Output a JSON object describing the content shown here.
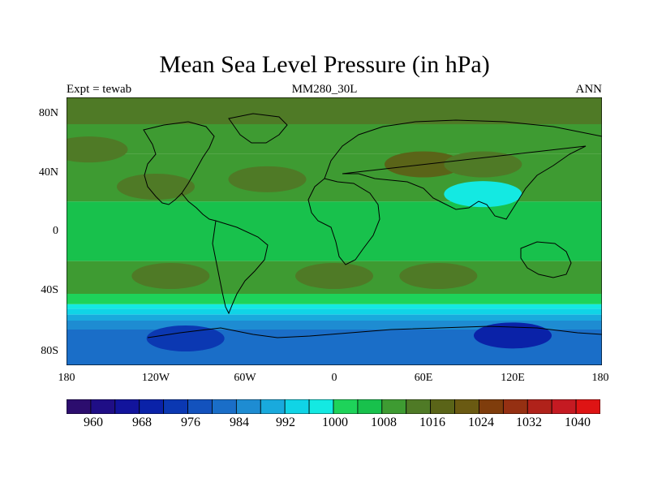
{
  "title": "Mean Sea Level Pressure (in hPa)",
  "left_label": "Expt = tewab",
  "center_label": "MM280_30L",
  "right_label": "ANN",
  "map": {
    "projection": "cylindrical-equidistant",
    "lon_range": [
      -180,
      180
    ],
    "lat_range": [
      -90,
      90
    ],
    "y_ticks": [
      "80N",
      "40N",
      "0",
      "40S",
      "80S"
    ],
    "x_ticks": [
      "180",
      "120W",
      "60W",
      "0",
      "60E",
      "120E",
      "180"
    ],
    "coastlines": true
  },
  "colorbar": {
    "levels": [
      960,
      964,
      968,
      972,
      976,
      980,
      984,
      988,
      992,
      996,
      1000,
      1004,
      1008,
      1012,
      1016,
      1020,
      1024,
      1028,
      1032,
      1036,
      1040
    ],
    "labels": [
      "960",
      "968",
      "976",
      "984",
      "992",
      "1000",
      "1008",
      "1016",
      "1024",
      "1032",
      "1040"
    ],
    "colors": [
      "#2c0d6e",
      "#1f0e86",
      "#12149c",
      "#0a22a8",
      "#0b38b2",
      "#1352bd",
      "#1a6ec8",
      "#1e8cd2",
      "#19aadd",
      "#10d4e6",
      "#14e9e2",
      "#1ed35a",
      "#18c14c",
      "#3e9b32",
      "#4f7a26",
      "#5a6418",
      "#6a5a12",
      "#7f3d0c",
      "#953012",
      "#b0221a",
      "#c51a22",
      "#de1414"
    ]
  },
  "bands": [
    {
      "lat_top": 90,
      "lat_bottom": 72,
      "level_index": 14
    },
    {
      "lat_top": 72,
      "lat_bottom": 52,
      "level_index": 13
    },
    {
      "lat_top": 52,
      "lat_bottom": 20,
      "level_index": 13
    },
    {
      "lat_top": 20,
      "lat_bottom": -20,
      "level_index": 12
    },
    {
      "lat_top": -20,
      "lat_bottom": -42,
      "level_index": 13
    },
    {
      "lat_top": -42,
      "lat_bottom": -49,
      "level_index": 11
    },
    {
      "lat_top": -49,
      "lat_bottom": -52,
      "level_index": 10
    },
    {
      "lat_top": -52,
      "lat_bottom": -56,
      "level_index": 9
    },
    {
      "lat_top": -56,
      "lat_bottom": -60,
      "level_index": 8
    },
    {
      "lat_top": -60,
      "lat_bottom": -66,
      "level_index": 7
    },
    {
      "lat_top": -66,
      "lat_bottom": -90,
      "level_index": 6
    }
  ],
  "cells": [
    {
      "lon": -165,
      "lat": 55,
      "level_index": 14
    },
    {
      "lon": -45,
      "lat": 35,
      "level_index": 14
    },
    {
      "lon": 60,
      "lat": 45,
      "level_index": 15
    },
    {
      "lon": 100,
      "lat": 45,
      "level_index": 14
    },
    {
      "lon": -120,
      "lat": 30,
      "level_index": 14
    },
    {
      "lon": 100,
      "lat": 25,
      "level_index": 10
    },
    {
      "lon": -110,
      "lat": -30,
      "level_index": 14
    },
    {
      "lon": 0,
      "lat": -30,
      "level_index": 14
    },
    {
      "lon": 70,
      "lat": -30,
      "level_index": 14
    },
    {
      "lon": 120,
      "lat": -70,
      "level_index": 3
    },
    {
      "lon": -100,
      "lat": -72,
      "level_index": 4
    }
  ]
}
